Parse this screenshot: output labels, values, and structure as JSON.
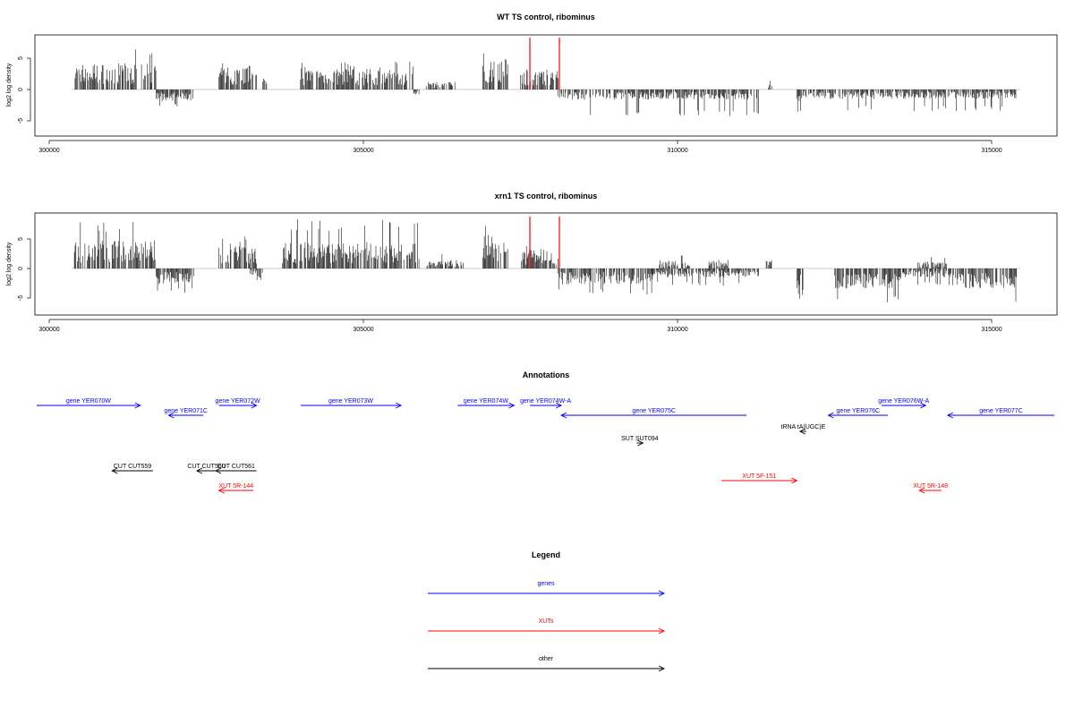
{
  "chart_data": [
    {
      "type": "bar",
      "title": "WT TS control, ribominus",
      "ylabel": "log2 log density",
      "xlabel": "",
      "xlim": [
        299800,
        316000
      ],
      "ylim": [
        -7.5,
        8.5
      ],
      "xticks": [
        "300000",
        "305000",
        "310000",
        "315000"
      ],
      "xtick_values": [
        300000,
        305000,
        310000,
        315000
      ],
      "yticks": [
        "-5",
        "0",
        "5"
      ],
      "ytick_values": [
        -5,
        0,
        5
      ],
      "highlight_x": [
        307650,
        308120
      ],
      "highlight_color": "#ff0000",
      "plus_segments": [
        {
          "range": [
            300400,
            301700
          ],
          "mean": 2.8,
          "max": 6.8
        },
        {
          "range": [
            302700,
            303300
          ],
          "mean": 2.6,
          "max": 5.0
        },
        {
          "range": [
            303400,
            303500
          ],
          "mean": 1.2,
          "max": 1.8
        },
        {
          "range": [
            304000,
            305800
          ],
          "mean": 2.2,
          "max": 4.5
        },
        {
          "range": [
            306000,
            306500
          ],
          "mean": 0.8,
          "max": 1.3
        },
        {
          "range": [
            306900,
            307300
          ],
          "mean": 3.4,
          "max": 6.0
        },
        {
          "range": [
            307500,
            308100
          ],
          "mean": 2.0,
          "max": 4.0
        },
        {
          "range": [
            311450,
            311500
          ],
          "mean": 1.0,
          "max": 1.5
        }
      ],
      "minus_segments": [
        {
          "range": [
            301700,
            302300
          ],
          "mean": -1.3,
          "max": -3.0
        },
        {
          "range": [
            305800,
            305900
          ],
          "mean": -0.5,
          "max": -0.8
        },
        {
          "range": [
            308100,
            311300
          ],
          "mean": -1.1,
          "max": -4.3
        },
        {
          "range": [
            311900,
            312000
          ],
          "mean": -2.5,
          "max": -7.0
        },
        {
          "range": [
            312000,
            315400
          ],
          "mean": -1.0,
          "max": -3.5
        }
      ]
    },
    {
      "type": "bar",
      "title": "xrn1 TS control, ribominus",
      "ylabel": "log2 log density",
      "xlabel": "",
      "xlim": [
        299800,
        316000
      ],
      "ylim": [
        -7.5,
        8.5
      ],
      "xticks": [
        "300000",
        "305000",
        "310000",
        "315000"
      ],
      "xtick_values": [
        300000,
        305000,
        310000,
        315000
      ],
      "yticks": [
        "-5",
        "0",
        "5"
      ],
      "ytick_values": [
        -5,
        0,
        5
      ],
      "highlight_x": [
        307650,
        308120
      ],
      "highlight_color": "#ff0000",
      "plus_segments": [
        {
          "range": [
            300400,
            301700
          ],
          "mean": 3.2,
          "max": 8.2
        },
        {
          "range": [
            302700,
            303300
          ],
          "mean": 2.6,
          "max": 5.5
        },
        {
          "range": [
            303700,
            305900
          ],
          "mean": 3.0,
          "max": 8.4
        },
        {
          "range": [
            306000,
            306600
          ],
          "mean": 1.0,
          "max": 2.5
        },
        {
          "range": [
            306900,
            307300
          ],
          "mean": 3.8,
          "max": 7.5
        },
        {
          "range": [
            307500,
            308100
          ],
          "mean": 2.2,
          "max": 4.0
        },
        {
          "range": [
            309700,
            310200
          ],
          "mean": 1.0,
          "max": 2.5
        },
        {
          "range": [
            310500,
            310800
          ],
          "mean": 0.8,
          "max": 1.5
        },
        {
          "range": [
            311400,
            311500
          ],
          "mean": 1.2,
          "max": 3.2
        },
        {
          "range": [
            313800,
            314300
          ],
          "mean": 0.8,
          "max": 2.0
        }
      ],
      "minus_segments": [
        {
          "range": [
            301700,
            302300
          ],
          "mean": -1.8,
          "max": -4.2
        },
        {
          "range": [
            303200,
            303400
          ],
          "mean": -1.0,
          "max": -2.5
        },
        {
          "range": [
            308100,
            309600
          ],
          "mean": -1.8,
          "max": -4.7
        },
        {
          "range": [
            309600,
            311300
          ],
          "mean": -1.0,
          "max": -3.0
        },
        {
          "range": [
            311900,
            312000
          ],
          "mean": -3.0,
          "max": -6.5
        },
        {
          "range": [
            312500,
            313600
          ],
          "mean": -2.3,
          "max": -5.8
        },
        {
          "range": [
            313600,
            314400
          ],
          "mean": -1.0,
          "max": -3.0
        },
        {
          "range": [
            314400,
            315400
          ],
          "mean": -2.3,
          "max": -6.0
        }
      ]
    }
  ],
  "annotations": {
    "title": "Annotations",
    "items": [
      {
        "label": "gene YER070W",
        "start": 299800,
        "end": 301450,
        "dir": "right",
        "row": 0,
        "color": "#0000ff"
      },
      {
        "label": "gene YER071C",
        "start": 301900,
        "end": 302450,
        "dir": "left",
        "row": 1,
        "color": "#0000ff"
      },
      {
        "label": "gene YER072W",
        "start": 302700,
        "end": 303300,
        "dir": "right",
        "row": 0,
        "color": "#0000ff"
      },
      {
        "label": "gene YER073W",
        "start": 304000,
        "end": 305600,
        "dir": "right",
        "row": 0,
        "color": "#0000ff"
      },
      {
        "label": "gene YER074W",
        "start": 306500,
        "end": 307400,
        "dir": "right",
        "row": 0,
        "color": "#0000ff"
      },
      {
        "label": "gene YER074W-A",
        "start": 307650,
        "end": 308150,
        "dir": "right",
        "row": 0,
        "color": "#0000ff"
      },
      {
        "label": "gene YER075C",
        "start": 308150,
        "end": 311100,
        "dir": "left",
        "row": 1,
        "color": "#0000ff"
      },
      {
        "label": "gene YER076W-A",
        "start": 313250,
        "end": 313950,
        "dir": "right",
        "row": 0,
        "color": "#0000ff"
      },
      {
        "label": "gene YER076C",
        "start": 312400,
        "end": 313350,
        "dir": "left",
        "row": 1,
        "color": "#0000ff"
      },
      {
        "label": "gene YER077C",
        "start": 314300,
        "end": 316000,
        "dir": "left",
        "row": 1,
        "color": "#0000ff"
      },
      {
        "label": "tRNA tA(UGC)E",
        "start": 311950,
        "end": 312050,
        "dir": "left",
        "row": 2,
        "color": "#000000"
      },
      {
        "label": "SUT SUT094",
        "start": 309350,
        "end": 309450,
        "dir": "right",
        "row": 3,
        "color": "#000000"
      },
      {
        "label": "CUT CUT559",
        "start": 301000,
        "end": 301650,
        "dir": "left",
        "row": 4,
        "color": "#000000"
      },
      {
        "label": "CUT CUT560",
        "start": 302350,
        "end": 302650,
        "dir": "left",
        "row": 4,
        "color": "#000000"
      },
      {
        "label": "CUT CUT561",
        "start": 302650,
        "end": 303300,
        "dir": "left",
        "row": 4,
        "color": "#000000"
      },
      {
        "label": "XUT 5F-151",
        "start": 310700,
        "end": 311900,
        "dir": "right",
        "row": 5,
        "color": "#ff0000"
      },
      {
        "label": "XUT 5R-144",
        "start": 302700,
        "end": 303250,
        "dir": "left",
        "row": 6,
        "color": "#ff0000"
      },
      {
        "label": "XUT 5R-148",
        "start": 313850,
        "end": 314200,
        "dir": "left",
        "row": 6,
        "color": "#ff0000"
      }
    ]
  },
  "legend": {
    "title": "Legend",
    "items": [
      {
        "label": "genes",
        "color": "#0000ff"
      },
      {
        "label": "XUTs",
        "color": "#ff0000"
      },
      {
        "label": "other",
        "color": "#000000"
      }
    ]
  }
}
